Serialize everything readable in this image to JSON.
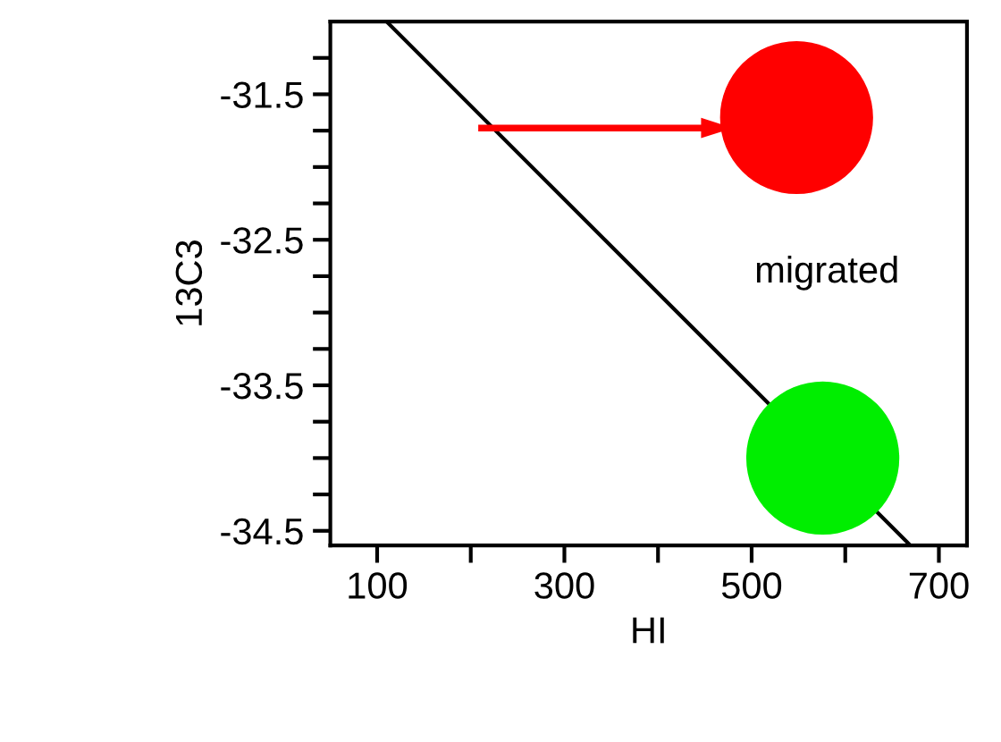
{
  "chart_data": {
    "type": "scatter",
    "xlabel": "HI",
    "ylabel": "13C3",
    "xlim": [
      50,
      730
    ],
    "ylim": [
      -34.6,
      -31
    ],
    "xticks": [
      100,
      {
        "value": 200,
        "label": null
      },
      300,
      {
        "value": 400,
        "label": null
      },
      500,
      {
        "value": 600,
        "label": null
      },
      700
    ],
    "yticks": [
      {
        "value": -31.25,
        "label": null
      },
      -31.5,
      {
        "value": -31.75,
        "label": null
      },
      {
        "value": -32,
        "label": null
      },
      {
        "value": -32.25,
        "label": null
      },
      -32.5,
      {
        "value": -32.75,
        "label": null
      },
      {
        "value": -33,
        "label": null
      },
      {
        "value": -33.25,
        "label": null
      },
      -33.5,
      {
        "value": -33.75,
        "label": null
      },
      {
        "value": -34,
        "label": null
      },
      {
        "value": -34.25,
        "label": null
      },
      -34.5
    ],
    "series": [
      {
        "type": "line",
        "color": "#000000",
        "x": [
          110,
          668
        ],
        "values": [
          -31,
          -34.59
        ]
      },
      {
        "x": [
          548,
          576
        ],
        "values": [
          -31.66,
          -34.0
        ],
        "colors": [
          "#ff0000",
          "#00ee00"
        ]
      }
    ],
    "annotations": [
      "migrated"
    ],
    "grid": false,
    "legend": false
  }
}
